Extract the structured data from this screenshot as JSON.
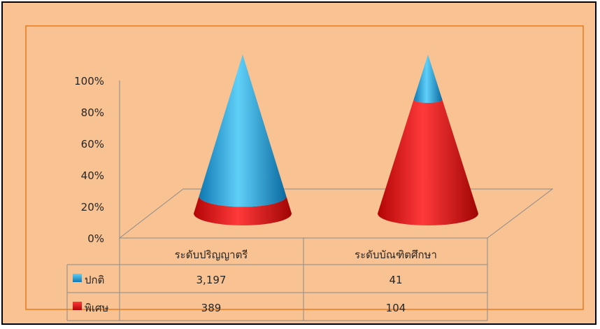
{
  "chart_data": {
    "type": "bar",
    "categories": [
      "ระดับปริญญาตรี",
      "ระดับบัณฑิตศึกษา"
    ],
    "series": [
      {
        "name": "ปกติ",
        "values": [
          3197,
          41
        ],
        "display": [
          "3,197",
          "41"
        ],
        "color": "#1fa3dd"
      },
      {
        "name": "พิเศษ",
        "values": [
          389,
          104
        ],
        "display": [
          "389",
          "104"
        ],
        "color": "#e01010"
      }
    ],
    "stacking": "percent",
    "y_ticks": [
      "0%",
      "20%",
      "40%",
      "60%",
      "80%",
      "100%"
    ],
    "ylim": [
      0,
      100
    ],
    "legend": "data-table"
  }
}
